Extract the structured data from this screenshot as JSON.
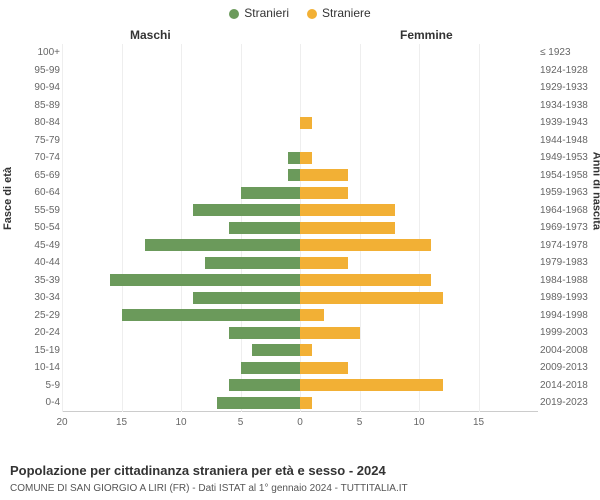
{
  "legend": {
    "m_label": "Stranieri",
    "f_label": "Straniere"
  },
  "headers": {
    "m": "Maschi",
    "f": "Femmine"
  },
  "axis": {
    "left": "Fasce di età",
    "right": "Anni di nascita"
  },
  "xticks_left": [
    20,
    15,
    10,
    5,
    0
  ],
  "xticks_right": [
    0,
    5,
    10,
    15
  ],
  "xmax_each_side": 20,
  "colors": {
    "m": "#6b9a5b",
    "f": "#f2b035",
    "grid": "#eeeeee",
    "centerline": "#777777"
  },
  "title": "Popolazione per cittadinanza straniera per età e sesso - 2024",
  "subtitle": "COMUNE DI SAN GIORGIO A LIRI (FR) - Dati ISTAT al 1° gennaio 2024 - TUTTITALIA.IT",
  "rows": [
    {
      "age": "100+",
      "birth": "≤ 1923",
      "m": 0,
      "f": 0
    },
    {
      "age": "95-99",
      "birth": "1924-1928",
      "m": 0,
      "f": 0
    },
    {
      "age": "90-94",
      "birth": "1929-1933",
      "m": 0,
      "f": 0
    },
    {
      "age": "85-89",
      "birth": "1934-1938",
      "m": 0,
      "f": 0
    },
    {
      "age": "80-84",
      "birth": "1939-1943",
      "m": 0,
      "f": 1
    },
    {
      "age": "75-79",
      "birth": "1944-1948",
      "m": 0,
      "f": 0
    },
    {
      "age": "70-74",
      "birth": "1949-1953",
      "m": 1,
      "f": 1
    },
    {
      "age": "65-69",
      "birth": "1954-1958",
      "m": 1,
      "f": 4
    },
    {
      "age": "60-64",
      "birth": "1959-1963",
      "m": 5,
      "f": 4
    },
    {
      "age": "55-59",
      "birth": "1964-1968",
      "m": 9,
      "f": 8
    },
    {
      "age": "50-54",
      "birth": "1969-1973",
      "m": 6,
      "f": 8
    },
    {
      "age": "45-49",
      "birth": "1974-1978",
      "m": 13,
      "f": 11
    },
    {
      "age": "40-44",
      "birth": "1979-1983",
      "m": 8,
      "f": 4
    },
    {
      "age": "35-39",
      "birth": "1984-1988",
      "m": 16,
      "f": 11
    },
    {
      "age": "30-34",
      "birth": "1989-1993",
      "m": 9,
      "f": 12
    },
    {
      "age": "25-29",
      "birth": "1994-1998",
      "m": 15,
      "f": 2
    },
    {
      "age": "20-24",
      "birth": "1999-2003",
      "m": 6,
      "f": 5
    },
    {
      "age": "15-19",
      "birth": "2004-2008",
      "m": 4,
      "f": 1
    },
    {
      "age": "10-14",
      "birth": "2009-2013",
      "m": 5,
      "f": 4
    },
    {
      "age": "5-9",
      "birth": "2014-2018",
      "m": 6,
      "f": 12
    },
    {
      "age": "0-4",
      "birth": "2019-2023",
      "m": 7,
      "f": 1
    }
  ]
}
